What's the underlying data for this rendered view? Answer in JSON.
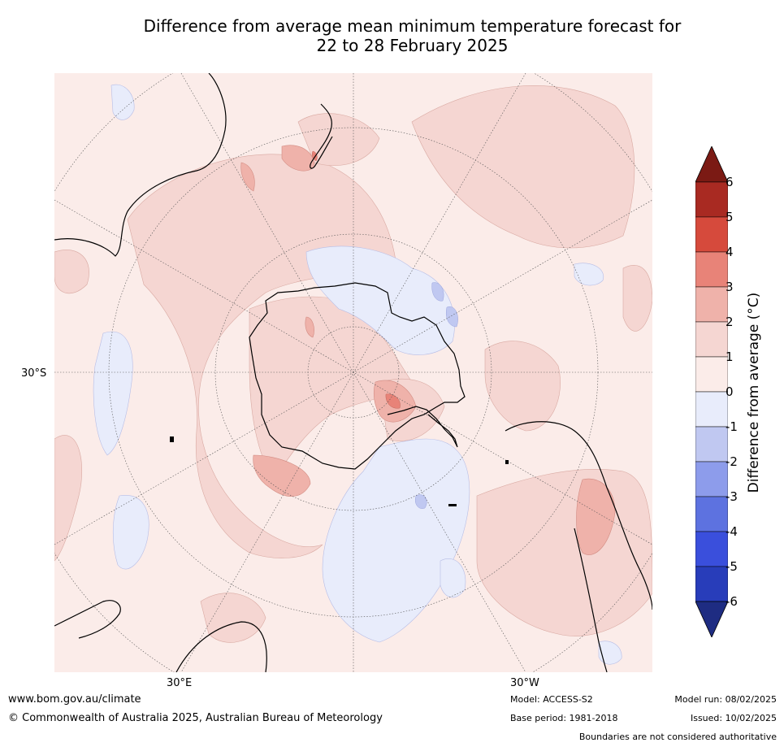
{
  "title_line1": "Difference from average mean minimum temperature forecast for",
  "title_line2": "22 to 28 February 2025",
  "map": {
    "projection": "south-polar-stereographic",
    "lat_label": "30°S",
    "lon_labels": [
      "30°E",
      "30°W"
    ]
  },
  "colorbar": {
    "title": "Difference from average (°C)",
    "ticks": [
      "6",
      "5",
      "4",
      "3",
      "2",
      "1",
      "0",
      "-1",
      "-2",
      "-3",
      "-4",
      "-5",
      "-6"
    ],
    "colors_warm": [
      "#7b1a14",
      "#a92a22",
      "#d64a3c",
      "#e88378",
      "#efb2aa",
      "#f5d6d2",
      "#fbece9"
    ],
    "colors_cool": [
      "#e8ecfb",
      "#c0c8f1",
      "#8d9ceb",
      "#5d72e0",
      "#3a4fdc",
      "#283dba",
      "#1e2c82"
    ],
    "extend": "both"
  },
  "footer": {
    "website": "www.bom.gov.au/climate",
    "copyright": "© Commonwealth of Australia 2025, Australian Bureau of Meteorology",
    "model": "Model: ACCESS-S2",
    "base_period": "Base period: 1981-2018",
    "model_run": "Model run: 08/02/2025",
    "issued": "Issued: 10/02/2025",
    "disclaimer": "Boundaries are not considered authoritative"
  }
}
